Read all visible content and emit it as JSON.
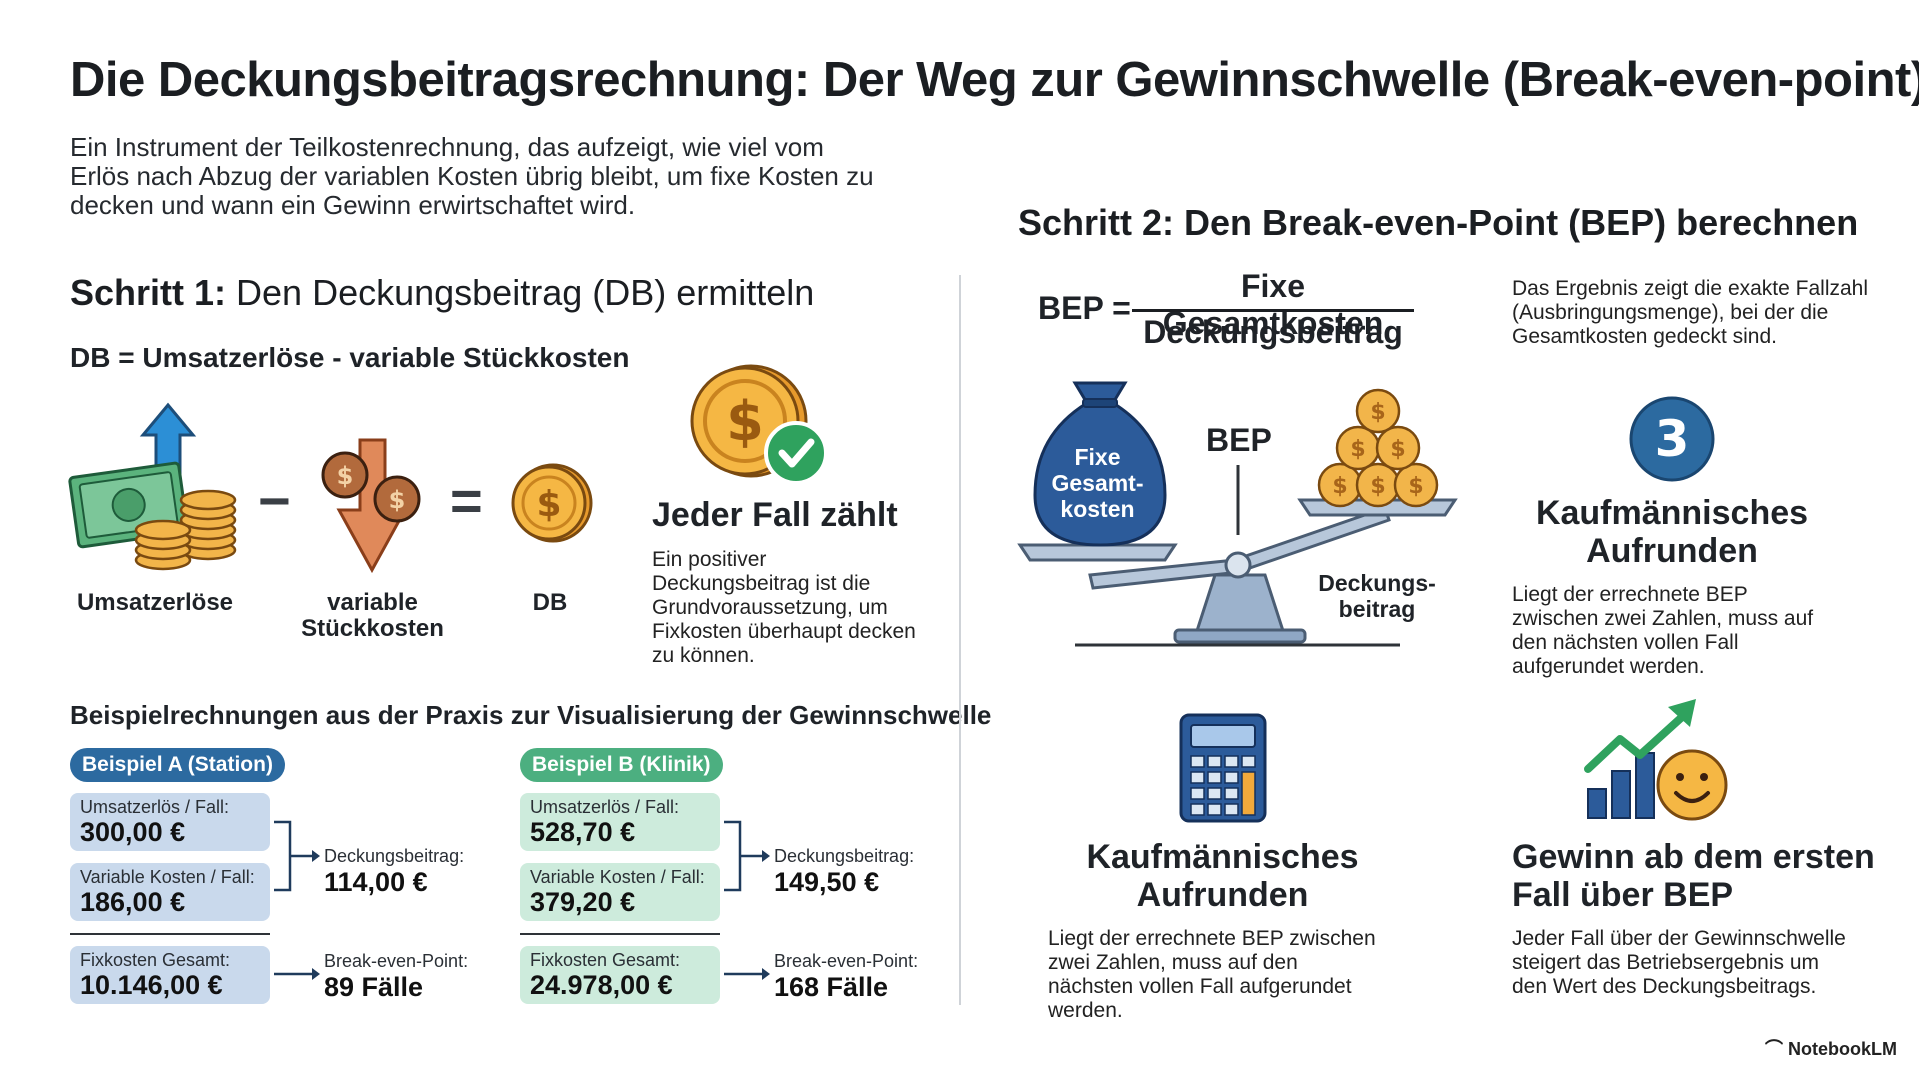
{
  "title": "Die Deckungsbeitragsrechnung: Der Weg zur Gewinnschwelle (Break-even-point)",
  "intro": "Ein Instrument der Teilkostenrechnung, das aufzeigt, wie viel vom Erlös nach Abzug der variablen Kosten übrig bleibt, um fixe Kosten zu decken und wann ein Gewinn erwirtschaftet wird.",
  "step1": {
    "heading_bold": "Schritt 1:",
    "heading_rest": " Den Deckungsbeitrag (DB) ermitteln",
    "formula": "DB = Umsatzerlöse - variable Stückkosten",
    "labels": {
      "revenue": "Umsatzerlöse",
      "varcost": "variable Stückkosten",
      "db": "DB"
    },
    "minus": "−",
    "equals": "=",
    "every_case": {
      "title": "Jeder Fall zählt",
      "text": "Ein positiver Deckungsbeitrag ist die Grundvoraussetzung, um Fixkosten überhaupt decken zu können."
    }
  },
  "examples": {
    "heading": "Beispielrechnungen aus der Praxis zur Visualisierung der Gewinnschwelle",
    "a": {
      "label": "Beispiel A (Station)",
      "revenue_key": "Umsatzerlös / Fall:",
      "revenue_val": "300,00 €",
      "var_key": "Variable Kosten / Fall:",
      "var_val": "186,00 €",
      "fix_key": "Fixkosten Gesamt:",
      "fix_val": "10.146,00 €",
      "db_key": "Deckungsbeitrag:",
      "db_val": "114,00 €",
      "bep_key": "Break-even-Point:",
      "bep_val": "89 Fälle"
    },
    "b": {
      "label": "Beispiel B (Klinik)",
      "revenue_key": "Umsatzerlös / Fall:",
      "revenue_val": "528,70 €",
      "var_key": "Variable Kosten / Fall:",
      "var_val": "379,20 €",
      "fix_key": "Fixkosten Gesamt:",
      "fix_val": "24.978,00 €",
      "db_key": "Deckungsbeitrag:",
      "db_val": "149,50 €",
      "bep_key": "Break-even-Point:",
      "bep_val": "168 Fälle"
    }
  },
  "step2": {
    "heading": "Schritt 2: Den Break-even-Point (BEP) berechnen",
    "bep_lhs": "BEP =",
    "numerator": "Fixe Gesamtkosten",
    "denominator": "Deckungsbeitrag",
    "result_text": "Das Ergebnis zeigt die exakte Fallzahl (Ausbringungsmenge), bei der die Gesamtkosten gedeckt sind.",
    "scale": {
      "bag_label": "Fixe Gesamt-kosten",
      "bep_label": "BEP",
      "coins_label": "Deckungs-beitrag"
    },
    "card_three": {
      "number": "3",
      "title": "Kaufmännisches Aufrunden",
      "text": "Liegt der errechnete BEP zwischen zwei Zahlen, muss auf den nächsten vollen Fall aufgerundet werden."
    },
    "card_calc": {
      "title": "Kaufmännisches Aufrunden",
      "text": "Liegt der errechnete BEP zwischen zwei Zahlen, muss auf den nächsten vollen Fall aufgerundet werden."
    },
    "card_profit": {
      "title": "Gewinn ab dem ersten Fall über BEP",
      "text": "Jeder Fall über der Gewinnschwelle steigert das Betriebsergebnis um den Wert des Deckungsbeitrags."
    }
  },
  "watermark": "NotebookLM",
  "colors": {
    "blue": "#2c6aa0",
    "green": "#4caf80",
    "coin": "#f2a93b",
    "steel": "#8fa7c4"
  }
}
